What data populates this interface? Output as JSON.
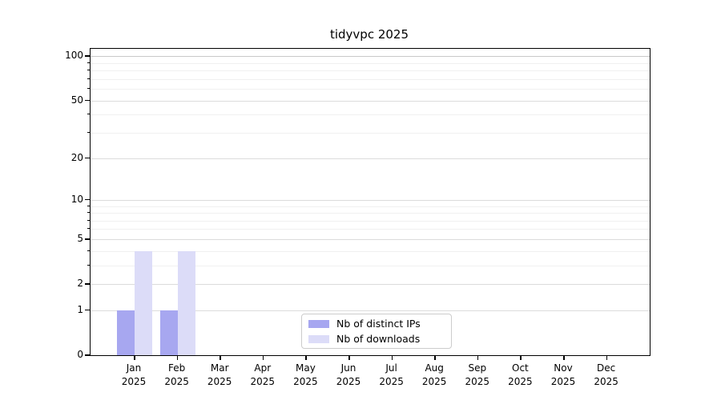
{
  "chart_data": {
    "type": "bar",
    "title": "tidyvpc 2025",
    "x_categories": [
      {
        "month": "Jan",
        "year": "2025"
      },
      {
        "month": "Feb",
        "year": "2025"
      },
      {
        "month": "Mar",
        "year": "2025"
      },
      {
        "month": "Apr",
        "year": "2025"
      },
      {
        "month": "May",
        "year": "2025"
      },
      {
        "month": "Jun",
        "year": "2025"
      },
      {
        "month": "Jul",
        "year": "2025"
      },
      {
        "month": "Aug",
        "year": "2025"
      },
      {
        "month": "Sep",
        "year": "2025"
      },
      {
        "month": "Oct",
        "year": "2025"
      },
      {
        "month": "Nov",
        "year": "2025"
      },
      {
        "month": "Dec",
        "year": "2025"
      }
    ],
    "series": [
      {
        "name": "Nb of distinct IPs",
        "color": "#a7a7f0",
        "values": [
          1,
          1,
          0,
          0,
          0,
          0,
          0,
          0,
          0,
          0,
          0,
          0
        ]
      },
      {
        "name": "Nb of downloads",
        "color": "#dcdcf8",
        "values": [
          4,
          4,
          0,
          0,
          0,
          0,
          0,
          0,
          0,
          0,
          0,
          0
        ]
      }
    ],
    "yscale": "log1p",
    "ylim": [
      0,
      100
    ],
    "yticks": [
      0,
      1,
      2,
      5,
      10,
      20,
      50,
      100
    ],
    "yticks_minor": [
      3,
      4,
      6,
      7,
      8,
      9,
      30,
      40,
      60,
      70,
      80,
      90
    ],
    "grid": "horizontal-major-and-minor",
    "legend_position": "lower center",
    "colors": {
      "spine": "#000000",
      "gridline_major": "#dcdcdc",
      "gridline_minor": "#f0f0f0",
      "background": "#ffffff"
    }
  }
}
